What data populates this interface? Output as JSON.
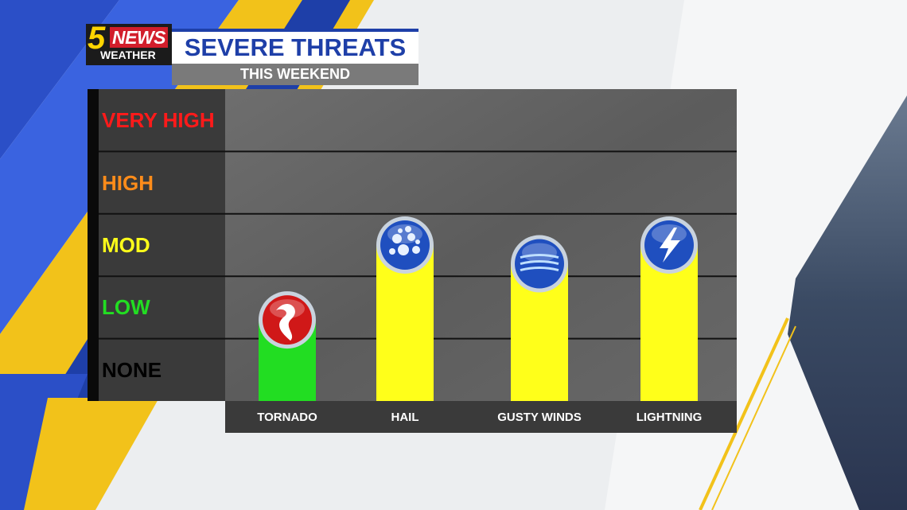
{
  "header": {
    "logo_number": "5",
    "logo_news": "NEWS",
    "logo_weather": "WEATHER",
    "title": "SEVERE THREATS",
    "subtitle": "THIS WEEKEND"
  },
  "colors": {
    "brand_blue": "#1e3fa8",
    "brand_yellow": "#ffd400",
    "low_bar": "#22dd22",
    "mod_bar": "#ffff1a"
  },
  "chart_data": {
    "type": "bar",
    "title": "SEVERE THREATS",
    "subtitle": "THIS WEEKEND",
    "levels": [
      {
        "label": "NONE",
        "color": "#000000"
      },
      {
        "label": "LOW",
        "color": "#22dd22"
      },
      {
        "label": "MOD",
        "color": "#ffff1a"
      },
      {
        "label": "HIGH",
        "color": "#ff8c1a"
      },
      {
        "label": "VERY HIGH",
        "color": "#ff1a1a"
      }
    ],
    "categories": [
      "TORNADO",
      "HAIL",
      "GUSTY WINDS",
      "LIGHTNING"
    ],
    "values": [
      1.3,
      2.5,
      2.2,
      2.5
    ],
    "bar_colors": [
      "#22dd22",
      "#ffff1a",
      "#ffff1a",
      "#ffff1a"
    ],
    "icons": [
      "tornado-icon",
      "hail-icon",
      "wind-icon",
      "lightning-icon"
    ],
    "ylim": [
      0,
      5
    ],
    "grid": true
  }
}
